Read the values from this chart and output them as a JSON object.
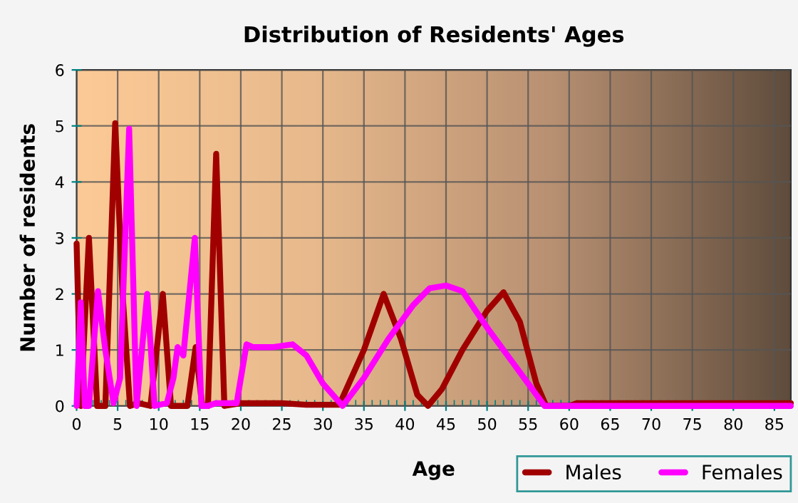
{
  "chart_data": {
    "type": "line",
    "title": "Distribution of Residents' Ages",
    "xlabel": "Age",
    "ylabel": "Number of residents",
    "xlim": [
      0,
      87
    ],
    "xticks": [
      0,
      5,
      10,
      15,
      20,
      25,
      30,
      35,
      40,
      45,
      50,
      55,
      60,
      65,
      70,
      75,
      80,
      85
    ],
    "ylim": [
      0,
      6
    ],
    "yticks": [
      0,
      1,
      2,
      3,
      4,
      5,
      6
    ],
    "grid": true,
    "legend": "bottom right",
    "marker": "none",
    "line_style": "solid",
    "series": [
      {
        "name": "Males",
        "color": "#a00000",
        "x": [
          0,
          0.5,
          1.5,
          2.5,
          3.5,
          4.7,
          5.6,
          6.5,
          7.5,
          9,
          10.5,
          11.5,
          12.5,
          13.5,
          14.5,
          15.3,
          16,
          17,
          18,
          20,
          25,
          28,
          32,
          35,
          37.4,
          39.5,
          41.5,
          42.8,
          44.5,
          47,
          50,
          52,
          54,
          56,
          57.2,
          60,
          61,
          87
        ],
        "values": [
          2.9,
          0,
          3,
          0,
          0,
          5.05,
          2,
          0,
          0.05,
          0,
          2,
          0,
          0,
          0,
          1.05,
          0,
          0,
          4.5,
          0,
          0.05,
          0.05,
          0.02,
          0.02,
          1,
          2,
          1.2,
          0.2,
          0,
          0.3,
          1,
          1.7,
          2.03,
          1.5,
          0.4,
          0,
          0,
          0.05,
          0.05
        ]
      },
      {
        "name": "Females",
        "color": "#ff00ff",
        "x": [
          0,
          0.5,
          1,
          1.5,
          2.6,
          3.5,
          4.5,
          5.3,
          6.4,
          7.3,
          8.6,
          9.5,
          11,
          11.8,
          12.3,
          13,
          14.4,
          15.2,
          16,
          17,
          19.5,
          20.7,
          21.5,
          24,
          26.3,
          28,
          30,
          32.4,
          35,
          38,
          41,
          43,
          45,
          47,
          50,
          53,
          57,
          58,
          87
        ],
        "values": [
          0,
          1.85,
          0,
          0,
          2.05,
          1,
          0.05,
          0.5,
          4.95,
          0,
          2,
          0,
          0.05,
          0.5,
          1.05,
          0.9,
          3,
          0,
          0,
          0.05,
          0.05,
          1.1,
          1.05,
          1.05,
          1.1,
          0.9,
          0.4,
          0,
          0.5,
          1.2,
          1.8,
          2.1,
          2.15,
          2.05,
          1.4,
          0.8,
          0,
          0,
          0
        ]
      }
    ]
  }
}
